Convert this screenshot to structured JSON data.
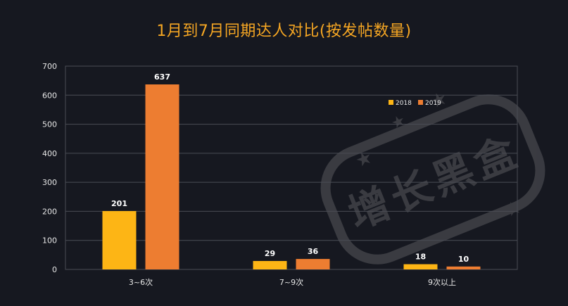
{
  "chart_data": {
    "type": "bar",
    "title": "1月到7月同期达人对比(按发帖数量)",
    "categories": [
      "3~6次",
      "7~9次",
      "9次以上"
    ],
    "series": [
      {
        "name": "2018",
        "color": "#FDB515",
        "values": [
          201,
          29,
          18
        ]
      },
      {
        "name": "2019",
        "color": "#ED7D31",
        "values": [
          637,
          36,
          10
        ]
      }
    ],
    "ylim": [
      0,
      700
    ],
    "yticks": [
      0,
      100,
      200,
      300,
      400,
      500,
      600,
      700
    ],
    "grid": true,
    "legend_position": "top-right",
    "xlabel": "",
    "ylabel": ""
  },
  "watermark": {
    "text": "增长黑盒"
  }
}
